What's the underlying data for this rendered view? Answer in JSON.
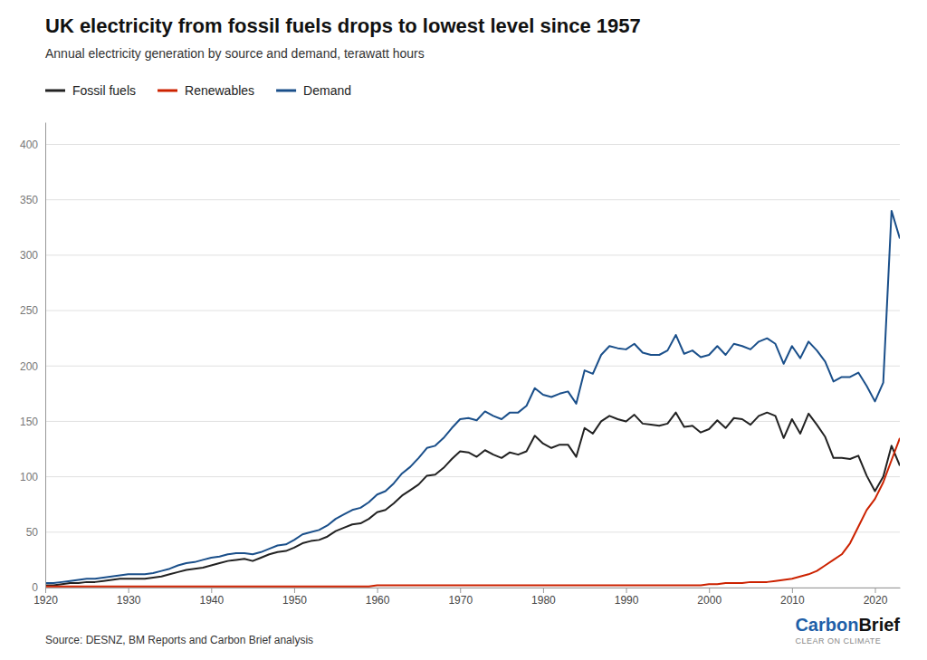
{
  "chart_data": {
    "type": "line",
    "title": "UK electricity from fossil fuels drops to lowest level since 1957",
    "subtitle": "Annual electricity generation by source and demand, terawatt hours",
    "annotations": [
      "Source: DESNZ, BM Reports and Carbon Brief analysis",
      "Carbon",
      "Brief",
      "CLEAR ON CLIMATE"
    ],
    "x": [
      1920,
      1921,
      1922,
      1923,
      1924,
      1925,
      1926,
      1927,
      1928,
      1929,
      1930,
      1931,
      1932,
      1933,
      1934,
      1935,
      1936,
      1937,
      1938,
      1939,
      1940,
      1941,
      1942,
      1943,
      1944,
      1945,
      1946,
      1947,
      1948,
      1949,
      1950,
      1951,
      1952,
      1953,
      1954,
      1955,
      1956,
      1957,
      1958,
      1959,
      1960,
      1961,
      1962,
      1963,
      1964,
      1965,
      1966,
      1967,
      1968,
      1969,
      1970,
      1971,
      1972,
      1973,
      1974,
      1975,
      1976,
      1977,
      1978,
      1979,
      1980,
      1981,
      1982,
      1983,
      1984,
      1985,
      1986,
      1987,
      1988,
      1989,
      1990,
      1991,
      1992,
      1993,
      1994,
      1995,
      1996,
      1997,
      1998,
      1999,
      2000,
      2001,
      2002,
      2003,
      2004,
      2005,
      2006,
      2007,
      2008,
      2009,
      2010,
      2011,
      2012,
      2013,
      2014,
      2015,
      2016,
      2017,
      2018,
      2019,
      2020,
      2021,
      2022,
      2023
    ],
    "series": [
      {
        "name": "Fossil fuels",
        "color": "#222222",
        "values": [
          2,
          2,
          3,
          4,
          4,
          5,
          5,
          6,
          7,
          8,
          8,
          8,
          8,
          9,
          10,
          12,
          14,
          16,
          17,
          18,
          20,
          22,
          24,
          25,
          26,
          24,
          27,
          30,
          32,
          33,
          36,
          40,
          42,
          43,
          46,
          51,
          54,
          57,
          58,
          62,
          68,
          70,
          76,
          83,
          88,
          93,
          101,
          102,
          108,
          116,
          123,
          122,
          118,
          124,
          120,
          117,
          122,
          120,
          123,
          137,
          130,
          126,
          129,
          129,
          118,
          144,
          139,
          150,
          155,
          152,
          150,
          156,
          148,
          147,
          146,
          148,
          158,
          145,
          146,
          140,
          143,
          151,
          144,
          153,
          152,
          147,
          155,
          158,
          155,
          135,
          152,
          139,
          157,
          147,
          136,
          117,
          117,
          116,
          119,
          101,
          87,
          100,
          128,
          110
        ]
      },
      {
        "name": "Renewables",
        "color": "#CC2200",
        "values": [
          1,
          1,
          1,
          1,
          1,
          1,
          1,
          1,
          1,
          1,
          1,
          1,
          1,
          1,
          1,
          1,
          1,
          1,
          1,
          1,
          1,
          1,
          1,
          1,
          1,
          1,
          1,
          1,
          1,
          1,
          1,
          1,
          1,
          1,
          1,
          1,
          1,
          1,
          1,
          1,
          2,
          2,
          2,
          2,
          2,
          2,
          2,
          2,
          2,
          2,
          2,
          2,
          2,
          2,
          2,
          2,
          2,
          2,
          2,
          2,
          2,
          2,
          2,
          2,
          2,
          2,
          2,
          2,
          2,
          2,
          2,
          2,
          2,
          2,
          2,
          2,
          2,
          2,
          2,
          2,
          3,
          3,
          4,
          4,
          4,
          5,
          5,
          5,
          6,
          7,
          8,
          10,
          12,
          15,
          20,
          25,
          30,
          40,
          55,
          70,
          80,
          95,
          115,
          135
        ]
      },
      {
        "name": "Demand",
        "color": "#1A4F8A",
        "values": [
          4,
          4,
          5,
          6,
          7,
          8,
          8,
          9,
          10,
          11,
          12,
          12,
          12,
          13,
          15,
          17,
          20,
          22,
          23,
          25,
          27,
          28,
          30,
          31,
          31,
          30,
          32,
          35,
          38,
          39,
          43,
          48,
          50,
          52,
          56,
          62,
          66,
          70,
          72,
          77,
          84,
          87,
          94,
          103,
          109,
          117,
          126,
          128,
          135,
          144,
          152,
          153,
          151,
          159,
          155,
          152,
          158,
          158,
          164,
          180,
          174,
          172,
          175,
          177,
          166,
          196,
          193,
          210,
          218,
          216,
          215,
          220,
          212,
          210,
          210,
          214,
          228,
          211,
          214,
          208,
          210,
          218,
          210,
          220,
          218,
          215,
          222,
          225,
          220,
          202,
          218,
          207,
          222,
          214,
          204,
          186,
          190,
          190,
          194,
          182,
          168,
          185,
          340,
          315
        ]
      }
    ],
    "xlim": [
      1920,
      2023
    ],
    "xticks": [
      1920,
      1930,
      1940,
      1950,
      1960,
      1970,
      1980,
      1990,
      2000,
      2010,
      2020
    ],
    "ylim": [
      0,
      420
    ],
    "yticks": [
      0,
      50,
      100,
      150,
      200,
      250,
      300,
      350,
      400
    ],
    "grid": "y",
    "legend": "top"
  }
}
